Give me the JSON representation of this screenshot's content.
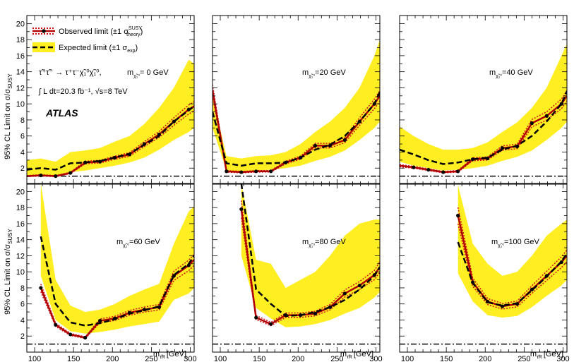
{
  "figure": {
    "ylabel_main": "95% CL Limit on σ/σ",
    "ylabel_sub": "SUSY",
    "xlabel_main": "m",
    "xlabel_sub": "τ̃R",
    "xlabel_unit": "[GeV]",
    "atlas_label": "ATLAS",
    "process_text": "τ̃⁺τ̃⁻ → τ⁺τ⁻χ̃₁⁰χ̃₁⁰,",
    "lumi_text": "∫ L dt=20.3 fb⁻¹,  √s=8 TeV",
    "legend": {
      "observed": "Observed limit (±1 σ",
      "observed_sup": "SUSY",
      "observed_sub": "theory",
      "observed_close": ")",
      "expected": "Expected limit (±1 σ",
      "expected_sub": "exp",
      "expected_close": ")"
    }
  },
  "colors": {
    "observed": "#b00000",
    "theory_band": "#d01010",
    "expected": "#000000",
    "band": "#ffee22",
    "unity": "#000000"
  },
  "chart_data": [
    {
      "type": "line",
      "mass_label": "m",
      "mass_sub": "χ̃₁⁰",
      "mass_value": "= 0 GeV",
      "xlim": [
        90,
        305
      ],
      "ylim": [
        0,
        21
      ],
      "xticks": [
        100,
        150,
        200,
        250,
        300
      ],
      "yticks": [
        2,
        4,
        6,
        8,
        10,
        12,
        14,
        16,
        18,
        20
      ],
      "observed": {
        "x": [
          90,
          108,
          127,
          146,
          165,
          184,
          203,
          222,
          241,
          260,
          279,
          298,
          305
        ],
        "y": [
          1.0,
          1.1,
          1.0,
          1.4,
          2.7,
          2.8,
          3.3,
          3.7,
          5.0,
          6.2,
          7.8,
          9.3,
          9.7
        ]
      },
      "expected": {
        "x": [
          90,
          108,
          127,
          146,
          165,
          184,
          203,
          222,
          241,
          260,
          279,
          298,
          305
        ],
        "y": [
          1.8,
          2.0,
          1.8,
          2.6,
          2.7,
          2.9,
          3.3,
          3.8,
          4.9,
          6.0,
          7.8,
          9.2,
          9.7
        ]
      },
      "band_hi": [
        3.0,
        3.2,
        2.8,
        4.0,
        4.2,
        4.5,
        5.3,
        6.0,
        7.5,
        9.5,
        12.0,
        15.5,
        15.0
      ],
      "band_lo": [
        1.0,
        1.2,
        1.0,
        1.5,
        1.7,
        2.0,
        2.3,
        2.7,
        3.3,
        4.3,
        5.5,
        6.5,
        7.0
      ]
    },
    {
      "type": "line",
      "mass_label": "m",
      "mass_sub": "χ̃₁⁰",
      "mass_value": "=20 GeV",
      "xlim": [
        90,
        305
      ],
      "ylim": [
        0,
        21
      ],
      "xticks": [
        100,
        150,
        200,
        250,
        300
      ],
      "yticks": [
        2,
        4,
        6,
        8,
        10,
        12,
        14,
        16,
        18,
        20
      ],
      "observed": {
        "x": [
          90,
          108,
          127,
          146,
          165,
          184,
          203,
          222,
          241,
          260,
          279,
          298,
          305
        ],
        "y": [
          11.7,
          1.6,
          1.5,
          1.6,
          1.6,
          2.7,
          3.3,
          4.8,
          4.8,
          5.5,
          7.8,
          10.0,
          11.0
        ]
      },
      "expected": {
        "x": [
          90,
          108,
          127,
          146,
          165,
          184,
          203,
          222,
          241,
          260,
          279,
          298,
          305
        ],
        "y": [
          9.0,
          2.6,
          2.3,
          2.6,
          2.6,
          2.7,
          3.3,
          4.3,
          4.9,
          6.0,
          7.8,
          10.0,
          11.5
        ]
      },
      "band_hi": [
        11.0,
        3.5,
        3.2,
        3.5,
        3.6,
        4.0,
        5.0,
        6.5,
        7.8,
        9.5,
        12.0,
        16.0,
        18.0
      ],
      "band_lo": [
        7.0,
        1.7,
        1.6,
        1.7,
        1.8,
        2.0,
        2.3,
        2.9,
        3.4,
        4.2,
        5.5,
        7.0,
        7.8
      ]
    },
    {
      "type": "line",
      "mass_label": "m",
      "mass_sub": "χ̃₁⁰",
      "mass_value": "=40 GeV",
      "xlim": [
        90,
        305
      ],
      "ylim": [
        0,
        21
      ],
      "xticks": [
        100,
        150,
        200,
        250,
        300
      ],
      "yticks": [
        2,
        4,
        6,
        8,
        10,
        12,
        14,
        16,
        18,
        20
      ],
      "observed": {
        "x": [
          90,
          108,
          127,
          146,
          165,
          184,
          203,
          222,
          241,
          260,
          279,
          298,
          305
        ],
        "y": [
          2.3,
          2.1,
          1.8,
          1.5,
          1.6,
          3.1,
          3.2,
          4.5,
          4.7,
          7.6,
          8.5,
          10.0,
          11.0
        ]
      },
      "expected": {
        "x": [
          90,
          108,
          127,
          146,
          165,
          184,
          203,
          222,
          241,
          260,
          279,
          298,
          305
        ],
        "y": [
          4.3,
          3.7,
          3.0,
          2.5,
          2.7,
          3.1,
          3.3,
          4.3,
          4.8,
          6.0,
          7.8,
          10.0,
          11.6
        ]
      },
      "band_hi": [
        7.2,
        6.0,
        5.0,
        4.3,
        4.3,
        4.5,
        5.2,
        6.5,
        7.7,
        9.5,
        12.0,
        16.0,
        17.5
      ],
      "band_lo": [
        2.8,
        2.3,
        2.0,
        1.7,
        1.8,
        2.0,
        2.3,
        2.9,
        3.4,
        4.2,
        5.5,
        7.0,
        7.8
      ]
    },
    {
      "type": "line",
      "mass_label": "m",
      "mass_sub": "χ̃₁⁰",
      "mass_value": "=60 GeV",
      "xlim": [
        90,
        305
      ],
      "ylim": [
        0,
        21
      ],
      "xticks": [
        100,
        150,
        200,
        250,
        300
      ],
      "yticks": [
        2,
        4,
        6,
        8,
        10,
        12,
        14,
        16,
        18,
        20
      ],
      "observed": {
        "x": [
          108,
          127,
          146,
          165,
          184,
          203,
          222,
          241,
          260,
          279,
          298,
          305
        ],
        "y": [
          8.0,
          3.4,
          2.2,
          1.8,
          3.9,
          4.2,
          4.9,
          5.3,
          5.6,
          9.5,
          10.8,
          11.5
        ]
      },
      "expected": {
        "x": [
          108,
          127,
          146,
          165,
          184,
          203,
          222,
          241,
          260,
          279,
          298,
          305
        ],
        "y": [
          14.4,
          6.0,
          3.7,
          3.3,
          3.6,
          4.1,
          4.8,
          5.2,
          5.7,
          9.6,
          11.0,
          12.0
        ]
      },
      "band_hi": [
        21.0,
        9.0,
        5.8,
        5.0,
        5.3,
        6.0,
        7.0,
        7.8,
        8.5,
        13.5,
        17.5,
        18.2
      ],
      "band_lo": [
        9.5,
        4.0,
        2.6,
        2.3,
        2.5,
        2.8,
        3.2,
        3.5,
        3.8,
        6.5,
        7.3,
        8.0
      ]
    },
    {
      "type": "line",
      "mass_label": "m",
      "mass_sub": "χ̃₁⁰",
      "mass_value": "=80 GeV",
      "xlim": [
        90,
        305
      ],
      "ylim": [
        0,
        21
      ],
      "xticks": [
        100,
        150,
        200,
        250,
        300
      ],
      "yticks": [
        2,
        4,
        6,
        8,
        10,
        12,
        14,
        16,
        18,
        20
      ],
      "observed": {
        "x": [
          127,
          146,
          165,
          184,
          203,
          222,
          241,
          260,
          279,
          298,
          305
        ],
        "y": [
          17.8,
          4.3,
          3.5,
          4.6,
          4.6,
          4.8,
          5.6,
          7.3,
          8.3,
          9.6,
          10.6
        ]
      },
      "expected": {
        "x": [
          127,
          146,
          165,
          184,
          203,
          222,
          241,
          260,
          279,
          298,
          305
        ],
        "y": [
          21.0,
          7.8,
          6.0,
          4.5,
          4.6,
          5.0,
          5.6,
          6.5,
          7.8,
          9.5,
          10.6
        ]
      },
      "band_hi": [
        21.0,
        11.5,
        11.0,
        8.0,
        9.0,
        10.0,
        12.0,
        14.5,
        16.0,
        16.5,
        16.5
      ],
      "band_lo": [
        12.0,
        5.5,
        4.2,
        3.1,
        3.2,
        3.5,
        4.0,
        4.8,
        5.5,
        6.8,
        7.5
      ]
    },
    {
      "type": "line",
      "mass_label": "m",
      "mass_sub": "χ̃₁⁰",
      "mass_value": "=100 GeV",
      "xlim": [
        90,
        305
      ],
      "ylim": [
        0,
        21
      ],
      "xticks": [
        100,
        150,
        200,
        250,
        300
      ],
      "yticks": [
        2,
        4,
        6,
        8,
        10,
        12,
        14,
        16,
        18,
        20
      ],
      "observed": {
        "x": [
          165,
          184,
          203,
          222,
          241,
          260,
          279,
          298,
          305
        ],
        "y": [
          17.0,
          8.7,
          6.3,
          5.7,
          6.0,
          7.8,
          9.5,
          11.2,
          12.0
        ]
      },
      "expected": {
        "x": [
          165,
          184,
          203,
          222,
          241,
          260,
          279,
          298,
          305
        ],
        "y": [
          13.7,
          8.6,
          6.2,
          5.8,
          6.1,
          7.7,
          9.4,
          11.3,
          12.3
        ]
      },
      "band_hi": [
        20.8,
        13.5,
        11.0,
        9.5,
        10.0,
        12.0,
        14.5,
        16.0,
        16.5
      ],
      "band_lo": [
        9.8,
        6.3,
        4.6,
        4.3,
        4.5,
        5.6,
        7.0,
        8.3,
        9.0
      ]
    }
  ]
}
